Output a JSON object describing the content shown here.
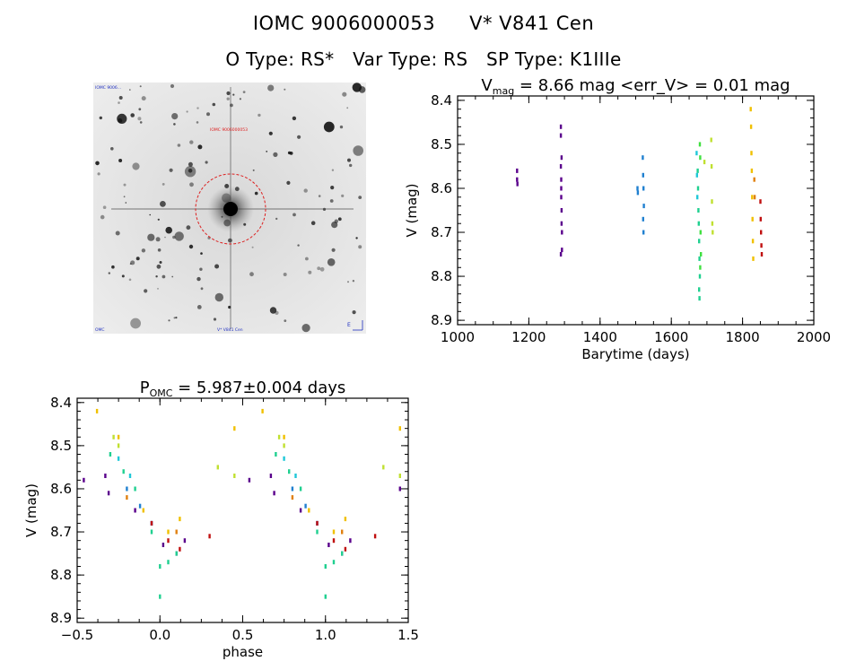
{
  "title": {
    "star_id": "IOMC 9006000053",
    "star_name": "V* V841 Cen",
    "o_type_label": "O Type:",
    "o_type": "RS*",
    "var_type_label": "Var Type:",
    "var_type": "RS",
    "sp_type_label": "SP Type:",
    "sp_type": "K1IIIe"
  },
  "finder_chart": {
    "top_left_label": "IOMC 9006...",
    "center_label": "IOMC 9006000053",
    "bottom_left_label": "OMC",
    "bottom_center_label": "V* V841 Cen",
    "compass_label": "E",
    "marker_color": "#dd2020"
  },
  "chart_data": [
    {
      "type": "scatter",
      "title": "V_mag = 8.66 mag  <err_V> = 0.01 mag",
      "title_parts": {
        "v": "V",
        "sub": "mag",
        "rest": " = 8.66 mag <err_V> = 0.01 mag"
      },
      "xlabel": "Barytime (days)",
      "ylabel": "V (mag)",
      "xlim": [
        1000,
        2000
      ],
      "ylim": [
        8.91,
        8.39
      ],
      "y_inverted": true,
      "xticks": [
        1000,
        1200,
        1400,
        1600,
        1800,
        2000
      ],
      "yticks": [
        8.4,
        8.5,
        8.6,
        8.7,
        8.8,
        8.9
      ],
      "series": [
        {
          "color": "#5a008c",
          "x": [
            1167,
            1167,
            1168,
            1290,
            1290,
            1290,
            1291,
            1291,
            1292,
            1292,
            1293,
            1293,
            1290,
            1291,
            1292
          ],
          "y": [
            8.56,
            8.58,
            8.59,
            8.46,
            8.48,
            8.55,
            8.58,
            8.62,
            8.65,
            8.68,
            8.7,
            8.74,
            8.75,
            8.6,
            8.53
          ]
        },
        {
          "color": "#2080d0",
          "x": [
            1505,
            1506,
            1520,
            1521,
            1522,
            1523,
            1521,
            1522
          ],
          "y": [
            8.6,
            8.61,
            8.53,
            8.57,
            8.6,
            8.64,
            8.67,
            8.7
          ]
        },
        {
          "color": "#20d090",
          "x": [
            1674,
            1675,
            1676,
            1677,
            1678,
            1679,
            1680,
            1678,
            1679
          ],
          "y": [
            8.56,
            8.6,
            8.65,
            8.68,
            8.72,
            8.76,
            8.8,
            8.83,
            8.85
          ]
        },
        {
          "color": "#40e040",
          "x": [
            1680,
            1681,
            1682,
            1683,
            1681
          ],
          "y": [
            8.5,
            8.53,
            8.7,
            8.75,
            8.78
          ]
        },
        {
          "color": "#20c8d8",
          "x": [
            1671,
            1672,
            1673
          ],
          "y": [
            8.52,
            8.57,
            8.62
          ]
        },
        {
          "color": "#c0e030",
          "x": [
            1693,
            1712,
            1713,
            1714,
            1715,
            1716
          ],
          "y": [
            8.54,
            8.49,
            8.55,
            8.63,
            8.68,
            8.7
          ]
        },
        {
          "color": "#f0c000",
          "x": [
            1823,
            1824,
            1825,
            1826,
            1827,
            1828,
            1829,
            1830
          ],
          "y": [
            8.42,
            8.46,
            8.52,
            8.56,
            8.62,
            8.67,
            8.72,
            8.76
          ]
        },
        {
          "color": "#e08010",
          "x": [
            1833,
            1834
          ],
          "y": [
            8.58,
            8.62
          ]
        },
        {
          "color": "#c01010",
          "x": [
            1850,
            1851,
            1852,
            1853,
            1854
          ],
          "y": [
            8.63,
            8.67,
            8.7,
            8.73,
            8.75
          ]
        }
      ]
    },
    {
      "type": "scatter",
      "title": "P_OMC = 5.987±0.004 days",
      "title_parts": {
        "p": "P",
        "sub": "OMC",
        "rest": " = 5.987±0.004 days"
      },
      "xlabel": "phase",
      "ylabel": "V (mag)",
      "xlim": [
        -0.5,
        1.5
      ],
      "ylim": [
        8.91,
        8.39
      ],
      "y_inverted": true,
      "xticks": [
        -0.5,
        0.0,
        0.5,
        1.0,
        1.5
      ],
      "xticklabels": [
        "−0.5",
        "0.0",
        "0.5",
        "1.0",
        "1.5"
      ],
      "yticks": [
        8.4,
        8.5,
        8.6,
        8.7,
        8.8,
        8.9
      ],
      "series": [
        {
          "color": "#5a008c",
          "x": [
            -0.46,
            -0.33,
            -0.31,
            -0.15,
            -0.05,
            0.02,
            0.1,
            0.15,
            0.54,
            0.67,
            0.69,
            0.85,
            0.95,
            1.02,
            1.1,
            1.15,
            1.45
          ],
          "y": [
            8.58,
            8.57,
            8.61,
            8.65,
            8.68,
            8.73,
            8.75,
            8.72,
            8.58,
            8.57,
            8.61,
            8.65,
            8.68,
            8.73,
            8.75,
            8.72,
            8.6
          ]
        },
        {
          "color": "#2080d0",
          "x": [
            -0.2,
            -0.12,
            -0.05,
            0.8,
            0.88,
            0.95
          ],
          "y": [
            8.6,
            8.64,
            8.68,
            8.6,
            8.64,
            8.68
          ]
        },
        {
          "color": "#20d090",
          "x": [
            -0.3,
            -0.22,
            -0.15,
            -0.05,
            0.0,
            0.0,
            0.05,
            0.1,
            0.7,
            0.78,
            0.85,
            0.95,
            1.0,
            1.0,
            1.05,
            1.1
          ],
          "y": [
            8.52,
            8.56,
            8.6,
            8.7,
            8.78,
            8.85,
            8.77,
            8.75,
            8.52,
            8.56,
            8.6,
            8.7,
            8.78,
            8.85,
            8.77,
            8.75
          ]
        },
        {
          "color": "#20c8d8",
          "x": [
            -0.25,
            -0.18,
            0.75,
            0.82
          ],
          "y": [
            8.53,
            8.57,
            8.53,
            8.57
          ]
        },
        {
          "color": "#c0e030",
          "x": [
            -0.28,
            -0.25,
            0.35,
            0.45,
            0.72,
            0.75,
            1.35,
            1.45
          ],
          "y": [
            8.48,
            8.5,
            8.55,
            8.57,
            8.48,
            8.5,
            8.55,
            8.57
          ]
        },
        {
          "color": "#f0c000",
          "x": [
            -0.38,
            -0.25,
            -0.1,
            0.05,
            0.12,
            0.45,
            0.62,
            0.75,
            0.9,
            1.05,
            1.12,
            1.45
          ],
          "y": [
            8.42,
            8.48,
            8.65,
            8.7,
            8.67,
            8.46,
            8.42,
            8.48,
            8.65,
            8.7,
            8.67,
            8.46
          ]
        },
        {
          "color": "#e08010",
          "x": [
            -0.2,
            0.1,
            0.8,
            1.1
          ],
          "y": [
            8.62,
            8.7,
            8.62,
            8.7
          ]
        },
        {
          "color": "#c01010",
          "x": [
            -0.05,
            0.05,
            0.12,
            0.3,
            0.95,
            1.05,
            1.12,
            1.3
          ],
          "y": [
            8.68,
            8.72,
            8.74,
            8.71,
            8.68,
            8.72,
            8.74,
            8.71
          ]
        }
      ]
    }
  ]
}
